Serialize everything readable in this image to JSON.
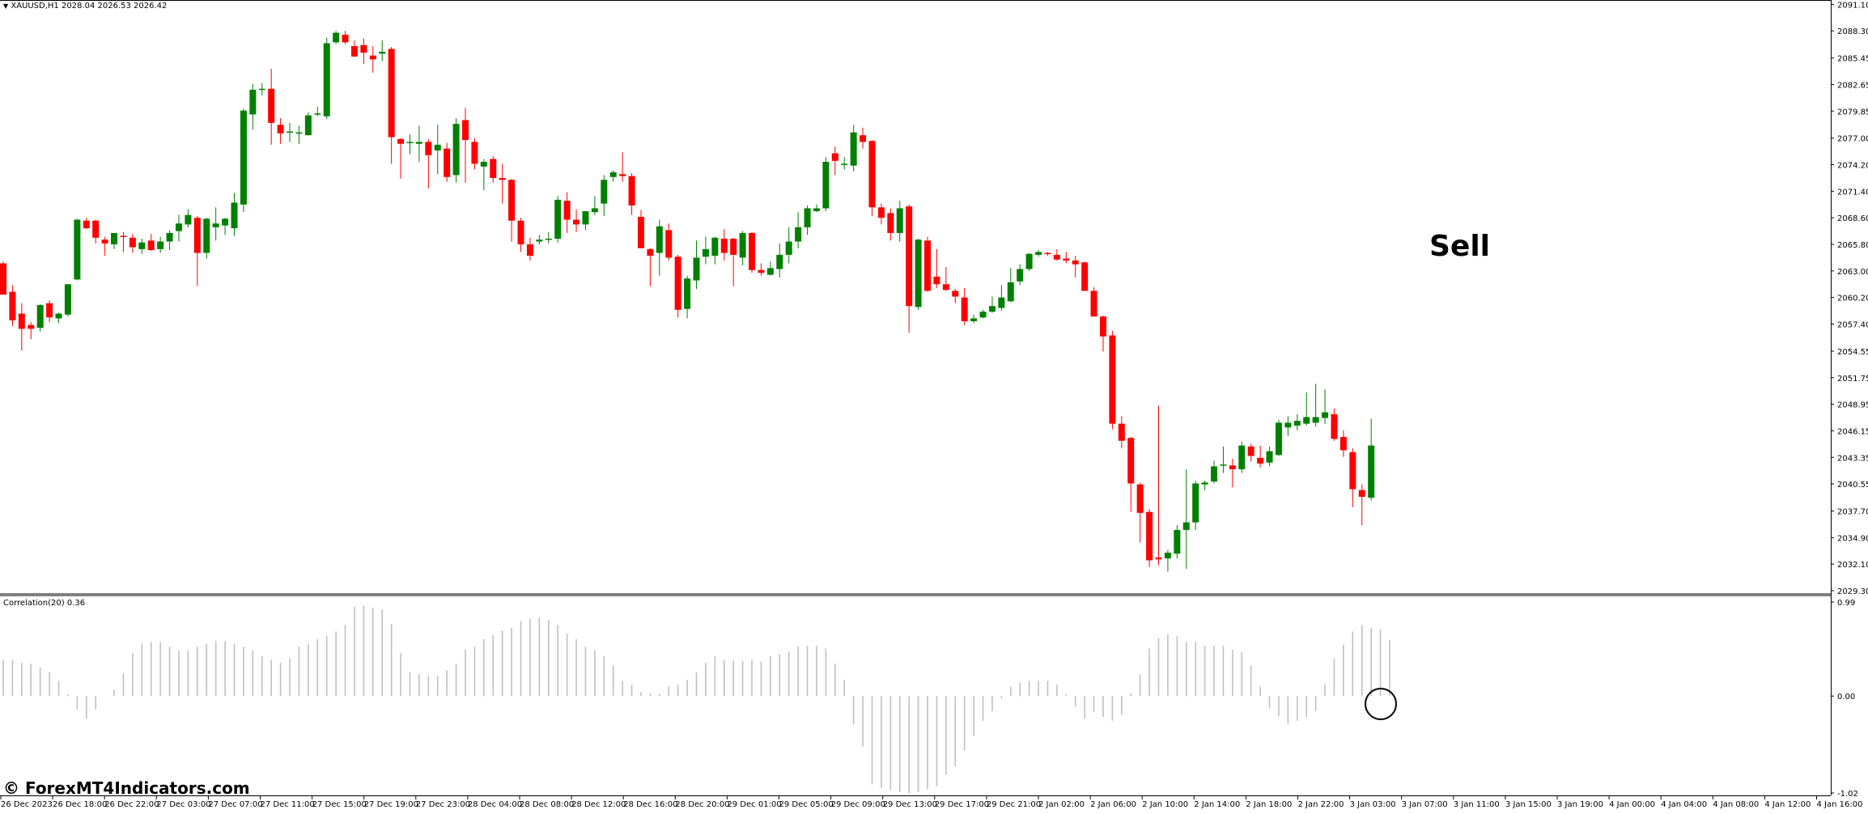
{
  "chart": {
    "title": "XAUUSD,H1  2028.04 2026.53 2026.42",
    "title_arrow": "▼",
    "indicator_title": "Correlation(20) 0.36",
    "annotation": "Sell",
    "watermark": "© ForexMT4Indicators.com",
    "colors": {
      "bull": "#008000",
      "bear": "#ff0000",
      "indicator": "#c0c0c0",
      "axis": "#000000"
    }
  },
  "chart_data": [
    {
      "type": "candlestick",
      "title": "XAUUSD,H1",
      "ylim": [
        2029.3,
        2091.13
      ],
      "y_ticks": [
        "2091.10",
        "2088.30",
        "2085.45",
        "2082.65",
        "2079.85",
        "2077.00",
        "2074.20",
        "2071.40",
        "2068.60",
        "2065.80",
        "2063.00",
        "2060.20",
        "2057.40",
        "2054.55",
        "2051.75",
        "2048.95",
        "2046.15",
        "2043.35",
        "2040.55",
        "2037.70",
        "2034.90",
        "2032.10",
        "2029.30"
      ],
      "x_labels": [
        "26 Dec 2023",
        "26 Dec 18:00",
        "26 Dec 22:00",
        "27 Dec 03:00",
        "27 Dec 07:00",
        "27 Dec 11:00",
        "27 Dec 15:00",
        "27 Dec 19:00",
        "27 Dec 23:00",
        "28 Dec 04:00",
        "28 Dec 08:00",
        "28 Dec 12:00",
        "28 Dec 16:00",
        "28 Dec 20:00",
        "29 Dec 01:00",
        "29 Dec 05:00",
        "29 Dec 09:00",
        "29 Dec 13:00",
        "29 Dec 17:00",
        "29 Dec 21:00",
        "2 Jan 02:00",
        "2 Jan 06:00",
        "2 Jan 10:00",
        "2 Jan 14:00",
        "2 Jan 18:00",
        "2 Jan 22:00",
        "3 Jan 03:00",
        "3 Jan 07:00",
        "3 Jan 11:00",
        "3 Jan 15:00",
        "3 Jan 19:00",
        "4 Jan 00:00",
        "4 Jan 04:00",
        "4 Jan 08:00",
        "4 Jan 12:00",
        "4 Jan 16:00"
      ],
      "ohlc": [
        [
          2063.8,
          2064.0,
          2060.5,
          2060.5
        ],
        [
          2060.8,
          2061.5,
          2057.2,
          2057.8
        ],
        [
          2058.5,
          2059.6,
          2054.6,
          2056.9
        ],
        [
          2057.3,
          2057.6,
          2055.8,
          2056.9
        ],
        [
          2057.0,
          2059.5,
          2056.6,
          2059.4
        ],
        [
          2059.6,
          2059.9,
          2057.6,
          2058.1
        ],
        [
          2058.0,
          2058.6,
          2057.5,
          2058.5
        ],
        [
          2058.4,
          2061.6,
          2058.2,
          2061.6
        ],
        [
          2062.1,
          2068.5,
          2062.0,
          2068.4
        ],
        [
          2068.3,
          2068.6,
          2067.4,
          2067.5
        ],
        [
          2068.3,
          2068.4,
          2065.9,
          2066.5
        ],
        [
          2066.3,
          2066.6,
          2064.6,
          2065.9
        ],
        [
          2065.8,
          2067.0,
          2065.3,
          2067.0
        ],
        [
          2066.7,
          2067.1,
          2065.0,
          2066.6
        ],
        [
          2066.5,
          2066.9,
          2064.9,
          2065.5
        ],
        [
          2065.3,
          2066.4,
          2064.8,
          2066.0
        ],
        [
          2066.2,
          2066.9,
          2065.1,
          2065.2
        ],
        [
          2065.3,
          2066.6,
          2064.9,
          2066.1
        ],
        [
          2066.1,
          2067.3,
          2065.2,
          2067.0
        ],
        [
          2067.2,
          2068.9,
          2066.1,
          2068.0
        ],
        [
          2067.9,
          2069.5,
          2067.6,
          2068.9
        ],
        [
          2068.6,
          2068.8,
          2061.4,
          2064.9
        ],
        [
          2064.9,
          2068.6,
          2064.3,
          2068.5
        ],
        [
          2067.6,
          2069.7,
          2066.2,
          2068.0
        ],
        [
          2067.8,
          2068.6,
          2066.8,
          2068.5
        ],
        [
          2067.5,
          2071.2,
          2066.7,
          2070.2
        ],
        [
          2070.0,
          2080.1,
          2069.2,
          2079.9
        ],
        [
          2079.5,
          2082.7,
          2077.9,
          2082.1
        ],
        [
          2082.2,
          2082.8,
          2081.5,
          2082.2
        ],
        [
          2082.2,
          2084.3,
          2076.3,
          2078.6
        ],
        [
          2078.4,
          2079.1,
          2076.4,
          2077.5
        ],
        [
          2077.7,
          2078.6,
          2076.6,
          2077.7
        ],
        [
          2077.6,
          2078.3,
          2076.4,
          2077.6
        ],
        [
          2077.3,
          2079.7,
          2077.3,
          2079.4
        ],
        [
          2079.5,
          2080.3,
          2079.3,
          2079.6
        ],
        [
          2079.3,
          2087.6,
          2079.0,
          2087.0
        ],
        [
          2087.1,
          2088.3,
          2086.9,
          2088.1
        ],
        [
          2087.9,
          2088.3,
          2086.9,
          2087.1
        ],
        [
          2086.7,
          2087.3,
          2085.6,
          2085.6
        ],
        [
          2086.8,
          2087.5,
          2084.8,
          2086.0
        ],
        [
          2085.7,
          2086.7,
          2083.9,
          2085.3
        ],
        [
          2085.9,
          2087.3,
          2085.1,
          2086.1
        ],
        [
          2086.4,
          2086.6,
          2074.3,
          2077.1
        ],
        [
          2076.9,
          2077.0,
          2072.7,
          2076.4
        ],
        [
          2076.5,
          2077.4,
          2075.3,
          2076.6
        ],
        [
          2076.4,
          2078.3,
          2074.5,
          2076.6
        ],
        [
          2076.6,
          2076.9,
          2071.7,
          2075.2
        ],
        [
          2075.7,
          2078.4,
          2073.2,
          2076.3
        ],
        [
          2075.9,
          2076.5,
          2072.4,
          2072.9
        ],
        [
          2073.1,
          2079.1,
          2072.3,
          2078.5
        ],
        [
          2078.9,
          2080.2,
          2072.3,
          2076.8
        ],
        [
          2076.6,
          2077.0,
          2073.7,
          2074.3
        ],
        [
          2074.0,
          2074.8,
          2071.5,
          2074.5
        ],
        [
          2074.8,
          2075.1,
          2072.3,
          2072.8
        ],
        [
          2072.8,
          2074.3,
          2070.1,
          2072.6
        ],
        [
          2072.6,
          2072.7,
          2066.1,
          2068.3
        ],
        [
          2068.3,
          2068.6,
          2065.0,
          2065.8
        ],
        [
          2065.8,
          2066.5,
          2064.1,
          2064.6
        ],
        [
          2066.1,
          2066.8,
          2065.8,
          2066.3
        ],
        [
          2066.3,
          2067.1,
          2065.9,
          2066.4
        ],
        [
          2066.4,
          2070.9,
          2066.0,
          2070.5
        ],
        [
          2070.4,
          2071.3,
          2067.0,
          2068.4
        ],
        [
          2068.4,
          2069.5,
          2067.1,
          2067.9
        ],
        [
          2067.9,
          2069.3,
          2067.3,
          2069.3
        ],
        [
          2069.2,
          2070.9,
          2068.9,
          2069.6
        ],
        [
          2070.1,
          2073.1,
          2068.8,
          2072.6
        ],
        [
          2072.9,
          2073.6,
          2072.4,
          2073.4
        ],
        [
          2073.2,
          2075.5,
          2072.4,
          2073.0
        ],
        [
          2073.0,
          2073.3,
          2068.9,
          2069.9
        ],
        [
          2068.7,
          2069.4,
          2065.4,
          2065.4
        ],
        [
          2065.3,
          2065.4,
          2061.4,
          2064.6
        ],
        [
          2064.9,
          2068.4,
          2062.5,
          2067.7
        ],
        [
          2067.3,
          2068.0,
          2064.1,
          2064.4
        ],
        [
          2064.5,
          2064.7,
          2058.1,
          2058.9
        ],
        [
          2059.0,
          2062.5,
          2058.0,
          2062.2
        ],
        [
          2062.0,
          2066.2,
          2061.1,
          2064.4
        ],
        [
          2064.5,
          2066.6,
          2063.7,
          2065.3
        ],
        [
          2064.6,
          2066.6,
          2063.7,
          2066.5
        ],
        [
          2066.4,
          2067.4,
          2064.1,
          2064.9
        ],
        [
          2066.4,
          2066.5,
          2061.4,
          2064.7
        ],
        [
          2064.4,
          2067.2,
          2063.6,
          2067.0
        ],
        [
          2067.0,
          2067.1,
          2062.8,
          2063.1
        ],
        [
          2063.1,
          2063.8,
          2062.5,
          2062.8
        ],
        [
          2062.6,
          2064.0,
          2062.5,
          2063.3
        ],
        [
          2063.2,
          2065.9,
          2062.3,
          2064.7
        ],
        [
          2064.7,
          2067.6,
          2063.8,
          2066.1
        ],
        [
          2066.1,
          2069.2,
          2065.4,
          2067.6
        ],
        [
          2067.6,
          2069.9,
          2066.8,
          2069.6
        ],
        [
          2069.3,
          2070.0,
          2069.2,
          2069.6
        ],
        [
          2069.6,
          2075.0,
          2069.3,
          2074.5
        ],
        [
          2075.4,
          2076.1,
          2073.1,
          2074.6
        ],
        [
          2074.3,
          2075.0,
          2073.7,
          2074.3
        ],
        [
          2074.1,
          2078.4,
          2073.5,
          2077.6
        ],
        [
          2077.3,
          2078.1,
          2075.9,
          2076.6
        ],
        [
          2076.7,
          2076.8,
          2068.8,
          2069.7
        ],
        [
          2069.7,
          2070.1,
          2067.9,
          2068.6
        ],
        [
          2069.1,
          2069.6,
          2066.2,
          2067.0
        ],
        [
          2067.0,
          2070.4,
          2066.1,
          2069.6
        ],
        [
          2069.8,
          2070.0,
          2056.5,
          2059.3
        ],
        [
          2059.2,
          2066.4,
          2058.9,
          2066.3
        ],
        [
          2066.2,
          2066.6,
          2060.8,
          2060.9
        ],
        [
          2062.4,
          2065.3,
          2061.2,
          2061.6
        ],
        [
          2061.6,
          2063.4,
          2060.9,
          2061.0
        ],
        [
          2060.9,
          2061.1,
          2059.6,
          2060.3
        ],
        [
          2060.2,
          2061.2,
          2057.3,
          2057.7
        ],
        [
          2057.7,
          2058.4,
          2057.5,
          2058.0
        ],
        [
          2058.1,
          2058.9,
          2058.0,
          2058.7
        ],
        [
          2058.7,
          2060.3,
          2058.6,
          2059.3
        ],
        [
          2059.1,
          2061.5,
          2058.8,
          2060.2
        ],
        [
          2059.8,
          2063.3,
          2059.7,
          2061.8
        ],
        [
          2061.9,
          2063.7,
          2061.5,
          2063.2
        ],
        [
          2063.2,
          2064.9,
          2063.0,
          2064.8
        ],
        [
          2064.7,
          2065.2,
          2064.5,
          2065.0
        ],
        [
          2064.9,
          2065.0,
          2064.6,
          2064.8
        ],
        [
          2064.7,
          2065.3,
          2064.1,
          2064.2
        ],
        [
          2064.3,
          2065.0,
          2063.8,
          2064.1
        ],
        [
          2064.1,
          2064.6,
          2062.3,
          2063.7
        ],
        [
          2063.9,
          2064.0,
          2060.9,
          2060.9
        ],
        [
          2060.9,
          2061.3,
          2058.2,
          2058.2
        ],
        [
          2058.2,
          2058.3,
          2054.5,
          2056.1
        ],
        [
          2056.2,
          2056.7,
          2046.3,
          2046.9
        ],
        [
          2046.9,
          2047.7,
          2044.3,
          2045.1
        ],
        [
          2045.4,
          2045.5,
          2037.6,
          2040.6
        ],
        [
          2040.5,
          2040.7,
          2034.4,
          2037.5
        ],
        [
          2037.6,
          2037.9,
          2031.8,
          2032.5
        ],
        [
          2032.8,
          2048.8,
          2032.0,
          2032.6
        ],
        [
          2032.7,
          2033.6,
          2031.3,
          2033.3
        ],
        [
          2033.2,
          2036.2,
          2032.7,
          2035.7
        ],
        [
          2035.7,
          2042.1,
          2031.6,
          2036.5
        ],
        [
          2036.5,
          2040.9,
          2035.7,
          2040.6
        ],
        [
          2040.5,
          2040.9,
          2039.9,
          2040.7
        ],
        [
          2040.8,
          2043.0,
          2040.6,
          2042.4
        ],
        [
          2042.5,
          2044.5,
          2041.7,
          2042.6
        ],
        [
          2042.5,
          2043.2,
          2040.2,
          2042.1
        ],
        [
          2042.1,
          2045.0,
          2041.7,
          2044.6
        ],
        [
          2044.5,
          2044.8,
          2042.9,
          2043.5
        ],
        [
          2043.3,
          2044.6,
          2042.3,
          2042.7
        ],
        [
          2042.8,
          2044.5,
          2042.4,
          2044.0
        ],
        [
          2043.6,
          2047.3,
          2043.5,
          2047.0
        ],
        [
          2046.5,
          2047.7,
          2045.6,
          2047.0
        ],
        [
          2046.7,
          2047.9,
          2046.2,
          2047.2
        ],
        [
          2046.9,
          2050.2,
          2046.7,
          2047.6
        ],
        [
          2047.0,
          2051.1,
          2046.6,
          2047.6
        ],
        [
          2047.5,
          2050.5,
          2046.9,
          2048.1
        ],
        [
          2047.9,
          2048.5,
          2045.1,
          2045.3
        ],
        [
          2045.5,
          2046.2,
          2043.4,
          2044.1
        ],
        [
          2043.9,
          2044.3,
          2038.1,
          2040.0
        ],
        [
          2039.9,
          2040.5,
          2036.2,
          2039.2
        ],
        [
          2039.1,
          2047.4,
          2038.8,
          2044.6
        ]
      ]
    },
    {
      "type": "bar",
      "title": "Correlation(20) 0.36",
      "ylim": [
        -1.02,
        0.99
      ],
      "y_ticks": [
        "0.99",
        "0.00",
        "-1.02"
      ],
      "values": [
        0.38,
        0.38,
        0.35,
        0.34,
        0.3,
        0.25,
        0.16,
        0.02,
        -0.14,
        -0.24,
        -0.14,
        0.0,
        0.07,
        0.24,
        0.45,
        0.55,
        0.57,
        0.57,
        0.52,
        0.48,
        0.48,
        0.52,
        0.55,
        0.58,
        0.58,
        0.55,
        0.52,
        0.48,
        0.42,
        0.38,
        0.35,
        0.4,
        0.52,
        0.55,
        0.6,
        0.63,
        0.68,
        0.75,
        0.94,
        0.95,
        0.93,
        0.91,
        0.76,
        0.45,
        0.25,
        0.23,
        0.21,
        0.21,
        0.27,
        0.34,
        0.49,
        0.52,
        0.6,
        0.64,
        0.69,
        0.72,
        0.79,
        0.81,
        0.83,
        0.8,
        0.75,
        0.66,
        0.6,
        0.52,
        0.48,
        0.42,
        0.32,
        0.16,
        0.12,
        0.04,
        0.03,
        0.02,
        0.1,
        0.12,
        0.17,
        0.25,
        0.35,
        0.42,
        0.38,
        0.37,
        0.37,
        0.38,
        0.36,
        0.42,
        0.44,
        0.47,
        0.52,
        0.53,
        0.53,
        0.5,
        0.34,
        0.17,
        -0.3,
        -0.53,
        -0.93,
        -0.97,
        -0.99,
        -1.01,
        -1.02,
        -1.01,
        -0.98,
        -0.95,
        -0.83,
        -0.74,
        -0.57,
        -0.42,
        -0.26,
        -0.16,
        -0.02,
        0.1,
        0.14,
        0.16,
        0.16,
        0.16,
        0.12,
        0.02,
        -0.11,
        -0.24,
        -0.17,
        -0.22,
        -0.26,
        -0.2,
        0.03,
        0.23,
        0.5,
        0.61,
        0.65,
        0.63,
        0.57,
        0.57,
        0.53,
        0.53,
        0.53,
        0.49,
        0.46,
        0.32,
        0.1,
        -0.13,
        -0.21,
        -0.29,
        -0.26,
        -0.22,
        -0.16,
        0.12,
        0.4,
        0.54,
        0.68,
        0.75,
        0.72,
        0.7,
        0.59
      ]
    }
  ]
}
